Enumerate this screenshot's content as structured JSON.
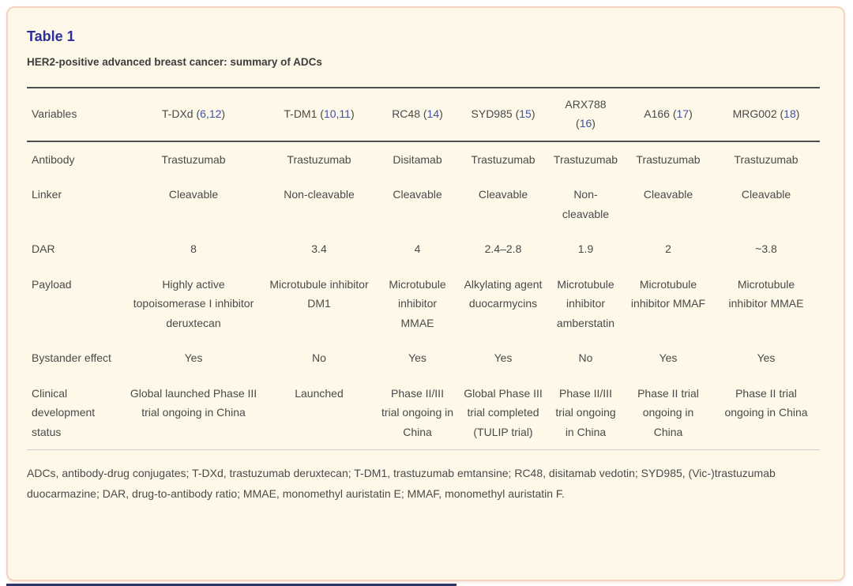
{
  "card": {
    "title": "Table 1",
    "subtitle": "HER2-positive advanced breast cancer: summary of ADCs",
    "footnote": "ADCs, antibody-drug conjugates; T-DXd, trastuzumab deruxtecan; T-DM1, trastuzumab emtansine; RC48, disitamab vedotin; SYD985, (Vic-)trastuzumab duocarmazine; DAR, drug-to-antibody ratio; MMAE, monomethyl auristatin E; MMAF, monomethyl auristatin F."
  },
  "colors": {
    "title_blue": "#2c2f9b",
    "citation_link_blue": "#3f51ad",
    "card_background": "#fdf8e7",
    "card_border_pink": "#f4d3c3",
    "body_text": "#4a4a4a",
    "rule_dark": "#4f4f4f",
    "rule_light": "#cfcfcf",
    "cutoff_bar_navy": "#2b3566"
  },
  "table": {
    "header": {
      "row_label": "Variables",
      "paren_open": "(",
      "paren_close": ")",
      "columns": [
        {
          "label": "T-DXd",
          "cite": "6,12"
        },
        {
          "label": "T-DM1",
          "cite": "10,11"
        },
        {
          "label": "RC48",
          "cite": "14"
        },
        {
          "label": "SYD985",
          "cite": "15"
        },
        {
          "label": "ARX788",
          "cite": "16"
        },
        {
          "label": "A166",
          "cite": "17"
        },
        {
          "label": "MRG002",
          "cite": "18"
        }
      ]
    },
    "rows": [
      {
        "label": "Antibody",
        "values": [
          "Trastuzumab",
          "Trastuzumab",
          "Disitamab",
          "Trastuzumab",
          "Trastuzumab",
          "Trastuzumab",
          "Trastuzumab"
        ]
      },
      {
        "label": "Linker",
        "values": [
          "Cleavable",
          "Non-cleavable",
          "Cleavable",
          "Cleavable",
          "Non-cleavable",
          "Cleavable",
          "Cleavable"
        ]
      },
      {
        "label": "DAR",
        "values": [
          "8",
          "3.4",
          "4",
          "2.4–2.8",
          "1.9",
          "2",
          "~3.8"
        ]
      },
      {
        "label": "Payload",
        "values": [
          "Highly active topoisomerase I inhibitor deruxtecan",
          "Microtubule inhibitor DM1",
          "Microtubule inhibitor MMAE",
          "Alkylating agent duocarmycins",
          "Microtubule inhibitor amberstatin",
          "Microtubule inhibitor MMAF",
          "Microtubule inhibitor MMAE"
        ]
      },
      {
        "label": "Bystander effect",
        "values": [
          "Yes",
          "No",
          "Yes",
          "Yes",
          "No",
          "Yes",
          "Yes"
        ]
      },
      {
        "label": "Clinical development status",
        "values": [
          "Global launched Phase III trial ongoing in China",
          "Launched",
          "Phase II/III trial ongoing in China",
          "Global Phase III trial completed (TULIP trial)",
          "Phase II/III trial ongoing in China",
          "Phase II trial ongoing in China",
          "Phase II trial ongoing in China"
        ]
      }
    ]
  }
}
